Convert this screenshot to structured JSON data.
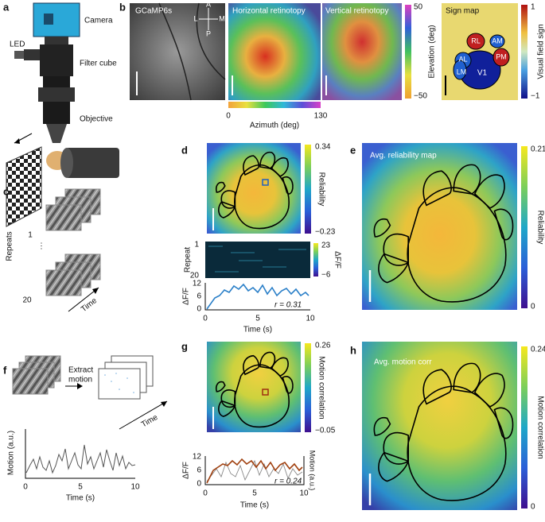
{
  "panel_a": {
    "label": "a",
    "camera": "Camera",
    "led": "LED",
    "filter_cube": "Filter cube",
    "objective": "Objective"
  },
  "panel_b": {
    "label": "b",
    "image_titles": [
      "GCaMP6s",
      "Horizontal retinotopy",
      "Vertical retinotopy",
      "Sign map"
    ],
    "compass": [
      "A",
      "P",
      "L",
      "M"
    ],
    "elevation_bar": {
      "max": "50",
      "min": "−50",
      "title": "Elevation (deg)"
    },
    "azimuth_bar": {
      "min": "0",
      "max": "130",
      "title": "Azimuth (deg)"
    },
    "sign_bar": {
      "max": "1",
      "min": "−1",
      "title": "Visual field sign"
    },
    "areas": [
      "RL",
      "AM",
      "AL",
      "PM",
      "LM",
      "V1"
    ]
  },
  "panel_c": {
    "label": "c",
    "first": "1",
    "last": "20",
    "axis": "Repeats",
    "time": "Time"
  },
  "panel_d": {
    "label": "d",
    "colorbar": {
      "max": "0.34",
      "min": "−0.23",
      "title": "Reliability"
    },
    "raster": {
      "first": "1",
      "last": "20",
      "axis": "Repeat",
      "bar_max": "23",
      "bar_min": "−6",
      "bar_title": "ΔF/F"
    },
    "trace": {
      "ylabel": "ΔF/F",
      "yticks": [
        "12",
        "6",
        "0"
      ],
      "xticks": [
        "0",
        "5",
        "10"
      ],
      "xlabel": "Time (s)",
      "stat": "r = 0.31"
    }
  },
  "panel_e": {
    "label": "e",
    "title": "Avg. reliability map",
    "colorbar": {
      "max": "0.21",
      "min": "0",
      "title": "Reliability"
    }
  },
  "panel_f": {
    "label": "f",
    "extract": [
      "Extract",
      "motion"
    ],
    "time": "Time",
    "trace": {
      "ylabel": "Motion (a.u.)",
      "xticks": [
        "0",
        "5",
        "10"
      ],
      "xlabel": "Time (s)"
    }
  },
  "panel_g": {
    "label": "g",
    "colorbar": {
      "max": "0.26",
      "min": "−0.05",
      "title": "Motion correlation"
    },
    "trace": {
      "ylabel": "ΔF/F",
      "y2label": "Motion (a.u.)",
      "yticks": [
        "12",
        "6",
        "0"
      ],
      "xticks": [
        "0",
        "5",
        "10"
      ],
      "xlabel": "Time (s)",
      "stat": "r = 0.24"
    }
  },
  "panel_h": {
    "label": "h",
    "title": "Avg. motion corr",
    "colorbar": {
      "max": "0.24",
      "min": "0",
      "title": "Motion correlation"
    }
  }
}
